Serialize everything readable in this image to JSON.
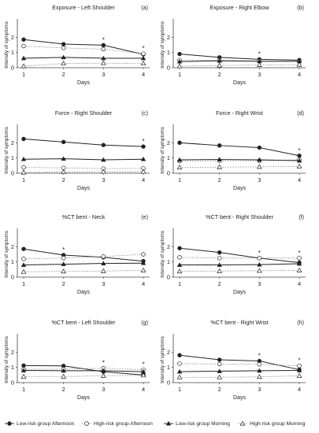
{
  "chart_data": [
    {
      "type": "line",
      "title": "Exposure - Left Shoulder",
      "panel_label": "(a)",
      "xlabel": "Days",
      "ylabel": "Intensity of symptoms",
      "categories": [
        "1",
        "2",
        "3",
        "4"
      ],
      "ylim": [
        0,
        3
      ],
      "yticks": [
        "0",
        "1",
        "2"
      ],
      "series": [
        {
          "values": [
            1.85,
            1.55,
            1.48,
            0.88
          ]
        },
        {
          "values": [
            1.42,
            1.3,
            1.22,
            0.92
          ]
        },
        {
          "values": [
            0.62,
            0.68,
            0.62,
            0.62
          ]
        },
        {
          "values": [
            0.1,
            0.28,
            0.3,
            0.28
          ]
        }
      ],
      "annotations": [
        {
          "day": "3",
          "symbol": "*"
        },
        {
          "day": "4",
          "symbol": "*"
        }
      ]
    },
    {
      "type": "line",
      "title": "Exposure - Right Elbow",
      "panel_label": "(b)",
      "xlabel": "Days",
      "ylabel": "Intensity of symptoms",
      "categories": [
        "1",
        "2",
        "3",
        "4"
      ],
      "ylim": [
        0,
        3
      ],
      "yticks": [
        "0",
        "1",
        "2"
      ],
      "series": [
        {
          "values": [
            0.9,
            0.68,
            0.55,
            0.5
          ]
        },
        {
          "values": [
            0.5,
            0.48,
            0.45,
            0.42
          ]
        },
        {
          "values": [
            0.4,
            0.45,
            0.42,
            0.42
          ]
        },
        {
          "values": [
            0.1,
            0.15,
            0.18,
            0.2
          ]
        }
      ],
      "annotations": [
        {
          "day": "3",
          "symbol": "*"
        }
      ]
    },
    {
      "type": "line",
      "title": "Force - Right Shoulder",
      "panel_label": "(c)",
      "xlabel": "Days",
      "ylabel": "Intensity of symptoms",
      "categories": [
        "1",
        "2",
        "3",
        "4"
      ],
      "ylim": [
        0,
        3
      ],
      "yticks": [
        "0",
        "1",
        "2"
      ],
      "series": [
        {
          "values": [
            2.25,
            2.05,
            1.85,
            1.75
          ]
        },
        {
          "values": [
            0.38,
            0.35,
            0.3,
            0.32
          ]
        },
        {
          "values": [
            0.92,
            0.95,
            0.88,
            0.92
          ]
        },
        {
          "values": [
            0.05,
            0.08,
            0.1,
            0.1
          ]
        }
      ],
      "annotations": [
        {
          "day": "4",
          "symbol": "*"
        }
      ]
    },
    {
      "type": "line",
      "title": "Force - Right Wrist",
      "panel_label": "(d)",
      "xlabel": "Days",
      "ylabel": "Intensity of symptoms",
      "categories": [
        "1",
        "2",
        "3",
        "4"
      ],
      "ylim": [
        0,
        3
      ],
      "yticks": [
        "0",
        "1",
        "2"
      ],
      "series": [
        {
          "values": [
            2.0,
            1.82,
            1.68,
            1.15
          ]
        },
        {
          "values": [
            0.8,
            0.82,
            0.82,
            0.88
          ]
        },
        {
          "values": [
            0.88,
            0.9,
            0.88,
            0.82
          ]
        },
        {
          "values": [
            0.38,
            0.4,
            0.42,
            0.45
          ]
        }
      ],
      "annotations": [
        {
          "day": "4",
          "symbol": "*"
        }
      ]
    },
    {
      "type": "line",
      "title": "%CT bent - Neck",
      "panel_label": "(e)",
      "xlabel": "Days",
      "ylabel": "Intensity of symptoms",
      "categories": [
        "1",
        "2",
        "3",
        "4"
      ],
      "ylim": [
        0,
        3
      ],
      "yticks": [
        "0",
        "1",
        "2"
      ],
      "series": [
        {
          "values": [
            1.85,
            1.45,
            1.3,
            1.05
          ]
        },
        {
          "values": [
            1.2,
            1.25,
            1.35,
            1.5
          ]
        },
        {
          "values": [
            0.8,
            0.85,
            0.9,
            0.92
          ]
        },
        {
          "values": [
            0.35,
            0.38,
            0.4,
            0.45
          ]
        }
      ],
      "annotations": [
        {
          "day": "2",
          "symbol": "*"
        }
      ]
    },
    {
      "type": "line",
      "title": "%CT bent - Right Shoulder",
      "panel_label": "(f)",
      "xlabel": "Days",
      "ylabel": "Intensity of symptoms",
      "categories": [
        "1",
        "2",
        "3",
        "4"
      ],
      "ylim": [
        0,
        3
      ],
      "yticks": [
        "0",
        "1",
        "2"
      ],
      "series": [
        {
          "values": [
            1.9,
            1.62,
            1.25,
            0.95
          ]
        },
        {
          "values": [
            1.3,
            1.25,
            1.25,
            1.25
          ]
        },
        {
          "values": [
            0.8,
            0.8,
            0.82,
            0.88
          ]
        },
        {
          "values": [
            0.38,
            0.4,
            0.42,
            0.45
          ]
        }
      ],
      "annotations": [
        {
          "day": "3",
          "symbol": "*"
        },
        {
          "day": "4",
          "symbol": "*"
        }
      ]
    },
    {
      "type": "line",
      "title": "%CT bent - Left Shoulder",
      "panel_label": "(g)",
      "xlabel": "Days",
      "ylabel": "Intensity of symptoms",
      "categories": [
        "1",
        "2",
        "3",
        "4"
      ],
      "ylim": [
        0,
        3
      ],
      "yticks": [
        "0",
        "1",
        "2"
      ],
      "series": [
        {
          "values": [
            1.12,
            1.1,
            0.72,
            0.5
          ]
        },
        {
          "values": [
            0.88,
            0.88,
            0.95,
            0.85
          ]
        },
        {
          "values": [
            0.8,
            0.78,
            0.78,
            0.72
          ]
        },
        {
          "values": [
            0.4,
            0.4,
            0.45,
            0.48
          ]
        }
      ],
      "annotations": [
        {
          "day": "3",
          "symbol": "*"
        },
        {
          "day": "4",
          "symbol": "*"
        }
      ]
    },
    {
      "type": "line",
      "title": "%CT bent - Right Wrist",
      "panel_label": "(h)",
      "xlabel": "Days",
      "ylabel": "Intensity of symptoms",
      "categories": [
        "1",
        "2",
        "3",
        "4"
      ],
      "ylim": [
        0,
        3
      ],
      "yticks": [
        "0",
        "1",
        "2"
      ],
      "series": [
        {
          "values": [
            1.8,
            1.5,
            1.42,
            0.85
          ]
        },
        {
          "values": [
            1.25,
            1.22,
            1.2,
            1.1
          ]
        },
        {
          "values": [
            0.72,
            0.75,
            0.78,
            0.8
          ]
        },
        {
          "values": [
            0.35,
            0.35,
            0.38,
            0.45
          ]
        }
      ],
      "annotations": [
        {
          "day": "3",
          "symbol": "*"
        },
        {
          "day": "4",
          "symbol": "*"
        }
      ]
    }
  ],
  "legend": {
    "position": "bottom",
    "items": [
      {
        "label": "Low-risk group Afternoon",
        "marker": "filled-circle",
        "line": "solid"
      },
      {
        "label": "High-risk group Afternoon",
        "marker": "open-circle",
        "line": "dotted"
      },
      {
        "label": "Low-risk group Morning",
        "marker": "filled-triangle",
        "line": "solid"
      },
      {
        "label": "High-risk group Morning",
        "marker": "open-triangle",
        "line": "dotted"
      }
    ]
  },
  "colors": {
    "ink": "#222222",
    "axis": "#444444",
    "dotted": "#8a8a8a"
  }
}
